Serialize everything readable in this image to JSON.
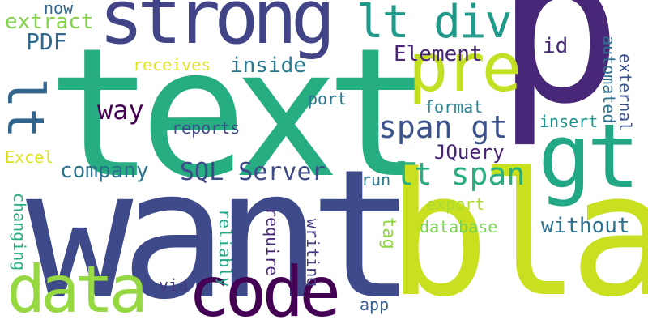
{
  "words": [
    {
      "text": "text",
      "color": "#26ad81"
    },
    {
      "text": "want",
      "color": "#3e4a89"
    },
    {
      "text": "p",
      "color": "#482778"
    },
    {
      "text": "bla",
      "color": "#c8e020"
    },
    {
      "text": "strong",
      "color": "#414487"
    },
    {
      "text": "gt",
      "color": "#22a884"
    },
    {
      "text": "code",
      "color": "#440154"
    },
    {
      "text": "data",
      "color": "#95d840"
    },
    {
      "text": "pre",
      "color": "#c2df23"
    },
    {
      "text": "lt div",
      "color": "#1f9a8a"
    },
    {
      "text": "lt",
      "color": "#32658e"
    },
    {
      "text": "span gt",
      "color": "#3b528b"
    },
    {
      "text": "lt span",
      "color": "#29af7f"
    },
    {
      "text": "SQL Server",
      "color": "#3e4a89"
    },
    {
      "text": "company",
      "color": "#2c728e"
    },
    {
      "text": "way",
      "color": "#440154"
    },
    {
      "text": "Element",
      "color": "#482475"
    },
    {
      "text": "PDF",
      "color": "#31688e"
    },
    {
      "text": "extract",
      "color": "#84d44b"
    },
    {
      "text": "now",
      "color": "#31688e"
    },
    {
      "text": "inside",
      "color": "#2a788e"
    },
    {
      "text": "receives",
      "color": "#e0e51c"
    },
    {
      "text": "reports",
      "color": "#3e4a89"
    },
    {
      "text": "port",
      "color": "#2a778e"
    },
    {
      "text": "format",
      "color": "#26828e"
    },
    {
      "text": "insert",
      "color": "#1f948c"
    },
    {
      "text": "id",
      "color": "#482878"
    },
    {
      "text": "automated",
      "color": "#2d708e"
    },
    {
      "text": "external",
      "color": "#3b528b"
    },
    {
      "text": "JQuery",
      "color": "#482475"
    },
    {
      "text": "Excel",
      "color": "#dde318"
    },
    {
      "text": "export",
      "color": "#addc30"
    },
    {
      "text": "database",
      "color": "#7ad151"
    },
    {
      "text": "without",
      "color": "#2c718e"
    },
    {
      "text": "run",
      "color": "#2a788e"
    },
    {
      "text": "tag",
      "color": "#8fd744"
    },
    {
      "text": "writing",
      "color": "#433e85"
    },
    {
      "text": "require",
      "color": "#482777"
    },
    {
      "text": "reliably",
      "color": "#22a785"
    },
    {
      "text": "changing",
      "color": "#29af7f"
    },
    {
      "text": "via",
      "color": "#453882"
    },
    {
      "text": "app",
      "color": "#365d8d"
    }
  ]
}
